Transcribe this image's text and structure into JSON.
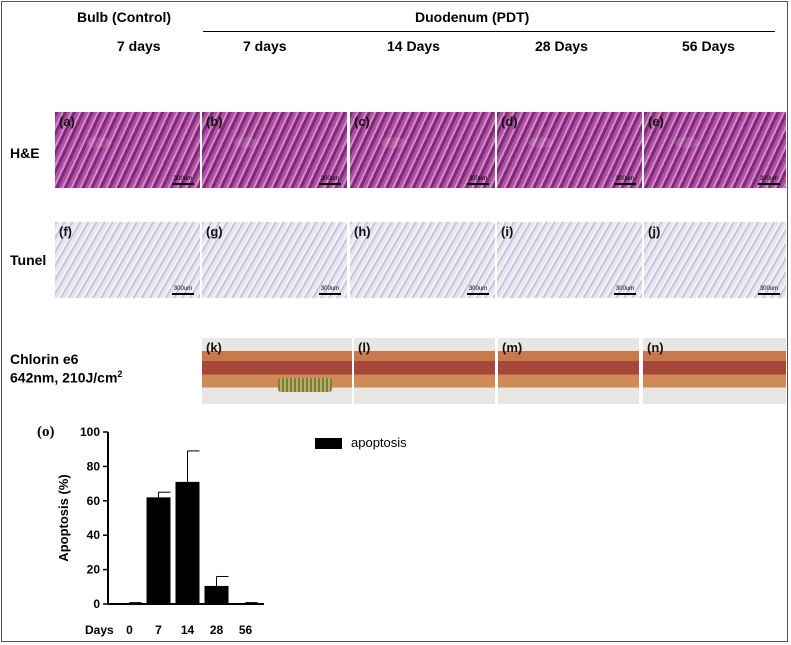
{
  "header": {
    "control_title": "Bulb (Control)",
    "pdt_title": "Duodenum (PDT)",
    "columns": [
      "7 days",
      "7 days",
      "14 Days",
      "28 Days",
      "56 Days"
    ]
  },
  "rows": {
    "he_label": "H&E",
    "tunel_label": "Tunel",
    "chlorin_label_1": "Chlorin e6",
    "chlorin_label_2_prefix": "642nm, 210J/cm",
    "chlorin_label_2_sup": "2"
  },
  "panels": {
    "he": [
      "(a)",
      "(b)",
      "(c)",
      "(d)",
      "(e)"
    ],
    "tunel": [
      "(f)",
      "(g)",
      "(h)",
      "(i)",
      "(j)"
    ],
    "gross": [
      "(k)",
      "(l)",
      "(m)",
      "(n)"
    ],
    "scale_text": "300um"
  },
  "chart_label": "(o)",
  "x_prefix": "Days",
  "chart_data": {
    "type": "bar",
    "categories": [
      "0",
      "7",
      "14",
      "28",
      "56"
    ],
    "series": [
      {
        "name": "apoptosis",
        "values": [
          0.3,
          62,
          71,
          10.5,
          0.3
        ],
        "errors": [
          0.5,
          3,
          18,
          5.5,
          0.5
        ]
      }
    ],
    "ylabel": "Apoptosis (%)",
    "ylim": [
      0,
      100
    ],
    "yticks": [
      0,
      20,
      40,
      60,
      80,
      100
    ],
    "legend": "top-right",
    "colors": {
      "bar": "#000000"
    }
  }
}
